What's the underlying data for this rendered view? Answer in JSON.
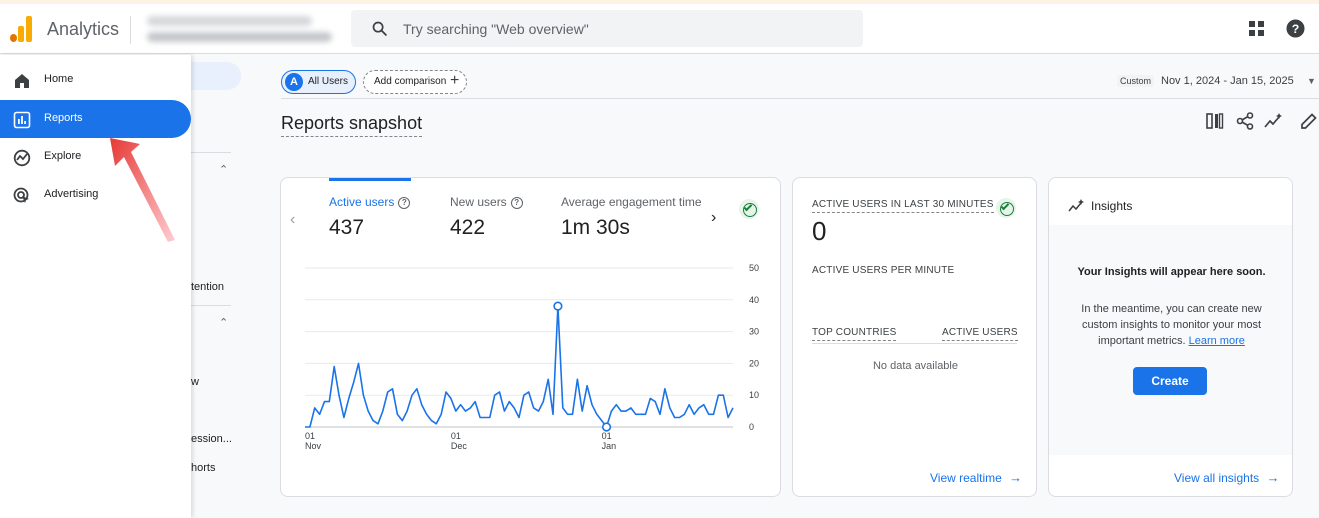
{
  "header": {
    "app_name": "Analytics",
    "search_placeholder": "Try searching \"Web overview\""
  },
  "sidebar": {
    "items": [
      {
        "label": "Home",
        "icon": "home-icon"
      },
      {
        "label": "Reports",
        "icon": "reports-icon",
        "active": true
      },
      {
        "label": "Explore",
        "icon": "explore-icon"
      },
      {
        "label": "Advertising",
        "icon": "advertising-icon"
      }
    ],
    "behind_labels": [
      "tention",
      "w",
      "ession...",
      "horts"
    ]
  },
  "toolbar": {
    "segment_badge": "A",
    "segment_label": "All Users",
    "add_comparison": "Add comparison",
    "date_custom": "Custom",
    "date_range": "Nov 1, 2024 - Jan 15, 2025"
  },
  "page": {
    "title": "Reports snapshot"
  },
  "overview_card": {
    "metrics": [
      {
        "label": "Active users",
        "value": "437"
      },
      {
        "label": "New users",
        "value": "422"
      },
      {
        "label": "Average engagement time p",
        "value": "1m 30s"
      }
    ]
  },
  "chart_data": {
    "type": "line",
    "title": "Active users",
    "y_ticks": [
      "50",
      "40",
      "30",
      "20",
      "10",
      "0"
    ],
    "ylim": [
      0,
      50
    ],
    "x_ticks": [
      {
        "day": "01",
        "month": "Nov",
        "index": 0
      },
      {
        "day": "01",
        "month": "Dec",
        "index": 30
      },
      {
        "day": "01",
        "month": "Jan",
        "index": 61
      }
    ],
    "series": [
      {
        "name": "Active users",
        "color": "#1a73e8",
        "values": [
          0,
          0,
          6,
          4,
          8,
          8,
          19,
          10,
          3,
          9,
          14,
          20,
          10,
          5,
          2,
          1,
          5,
          11,
          12,
          4,
          2,
          5,
          10,
          12,
          7,
          4,
          2,
          1,
          4,
          11,
          9,
          5,
          7,
          5,
          6,
          8,
          3,
          3,
          3,
          10,
          11,
          5,
          8,
          6,
          3,
          10,
          11,
          6,
          5,
          8,
          15,
          4,
          38,
          6,
          4,
          4,
          15,
          5,
          13,
          7,
          4,
          2,
          0,
          5,
          7,
          5,
          5,
          6,
          4,
          4,
          4,
          9,
          8,
          4,
          12,
          6,
          3,
          3,
          4,
          7,
          4,
          6,
          7,
          4,
          4,
          10,
          10,
          3,
          6
        ]
      }
    ],
    "markers": [
      {
        "index": 52,
        "value": 38
      },
      {
        "index": 62,
        "value": 0
      }
    ]
  },
  "realtime_card": {
    "header": "ACTIVE USERS IN LAST 30 MINUTES",
    "value": "0",
    "per_minute_label": "ACTIVE USERS PER MINUTE",
    "col_countries": "TOP COUNTRIES",
    "col_users": "ACTIVE USERS",
    "no_data": "No data available",
    "link": "View realtime"
  },
  "insights_card": {
    "title": "Insights",
    "headline": "Your Insights will appear here soon.",
    "body": "In the meantime, you can create new custom insights to monitor your most important metrics.",
    "learn_more": "Learn more",
    "create_button": "Create",
    "link": "View all insights"
  },
  "colors": {
    "accent": "#1a73e8",
    "success": "#188038",
    "annotation_arrow": "#e53935"
  }
}
